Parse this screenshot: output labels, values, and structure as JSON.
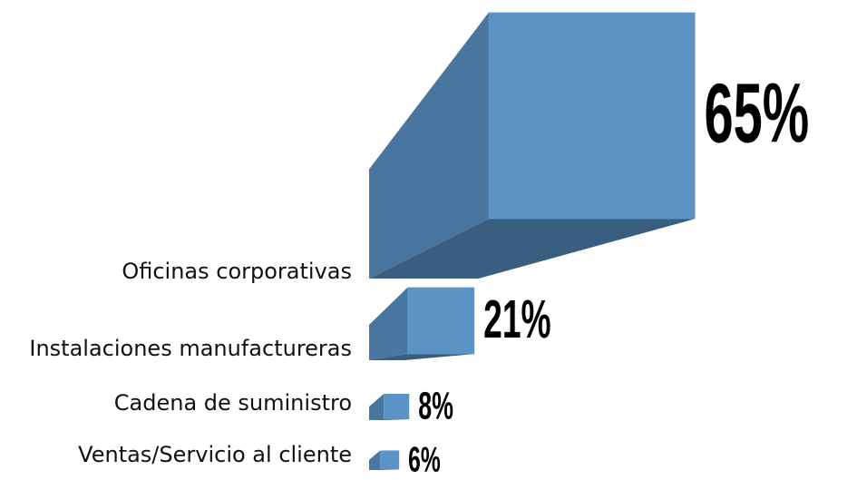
{
  "chart_data": {
    "type": "bar",
    "categories": [
      "Oficinas corporativas",
      "Instalaciones manufactureras",
      "Cadena de suministro",
      "Ventas/Servicio al cliente"
    ],
    "values": [
      65,
      21,
      8,
      6
    ],
    "value_labels": [
      "65%",
      "21%",
      "8%",
      "6%"
    ],
    "color": "#5b93c7"
  }
}
